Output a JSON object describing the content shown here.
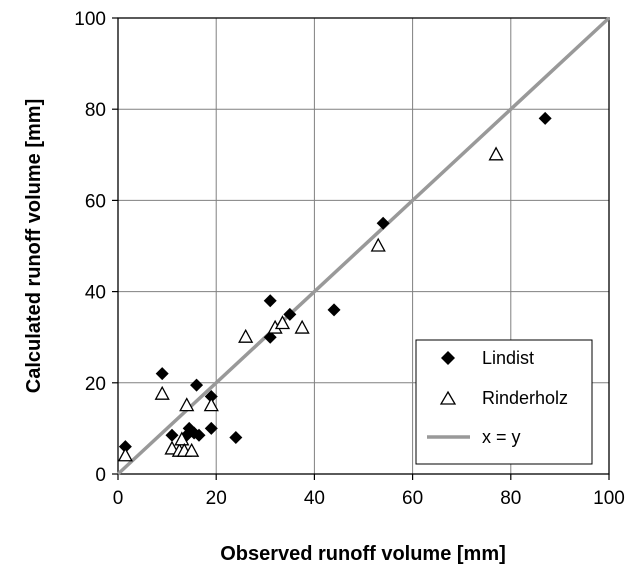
{
  "chart_data": {
    "type": "scatter",
    "xlabel": "Observed runoff volume [mm]",
    "ylabel": "Calculated runoff volume [mm]",
    "xlim": [
      0,
      100
    ],
    "ylim": [
      0,
      100
    ],
    "x_ticks": [
      0,
      20,
      40,
      60,
      80,
      100
    ],
    "y_ticks": [
      0,
      20,
      40,
      60,
      80,
      100
    ],
    "x_tick_labels": [
      "0",
      "20",
      "40",
      "60",
      "80",
      "100"
    ],
    "y_tick_labels": [
      "0",
      "20",
      "40",
      "60",
      "80",
      "100"
    ],
    "grid": true,
    "legend_position": "bottom-right",
    "series": [
      {
        "name": "Lindist",
        "marker": "diamond-filled",
        "color": "#000000",
        "points": [
          [
            1.5,
            6
          ],
          [
            9,
            22
          ],
          [
            11,
            8.5
          ],
          [
            14,
            8.5
          ],
          [
            14.5,
            10
          ],
          [
            15.5,
            9
          ],
          [
            16,
            19.5
          ],
          [
            16.5,
            8.5
          ],
          [
            19,
            17
          ],
          [
            19,
            10
          ],
          [
            24,
            8
          ],
          [
            31,
            38
          ],
          [
            31,
            30
          ],
          [
            35,
            35
          ],
          [
            44,
            36
          ],
          [
            54,
            55
          ],
          [
            87,
            78
          ]
        ]
      },
      {
        "name": "Rinderholz",
        "marker": "triangle-open",
        "color": "#000000",
        "points": [
          [
            1.5,
            4
          ],
          [
            9,
            17.5
          ],
          [
            11,
            5.5
          ],
          [
            12.5,
            5
          ],
          [
            13,
            7.5
          ],
          [
            13.5,
            5
          ],
          [
            14,
            15
          ],
          [
            15,
            5
          ],
          [
            19,
            15
          ],
          [
            26,
            30
          ],
          [
            32,
            32
          ],
          [
            33.5,
            33
          ],
          [
            37.5,
            32
          ],
          [
            53,
            50
          ],
          [
            77,
            70
          ]
        ]
      },
      {
        "name": "x = y",
        "marker": "line",
        "color": "#999999",
        "points": [
          [
            0,
            0
          ],
          [
            100,
            100
          ]
        ]
      }
    ]
  }
}
